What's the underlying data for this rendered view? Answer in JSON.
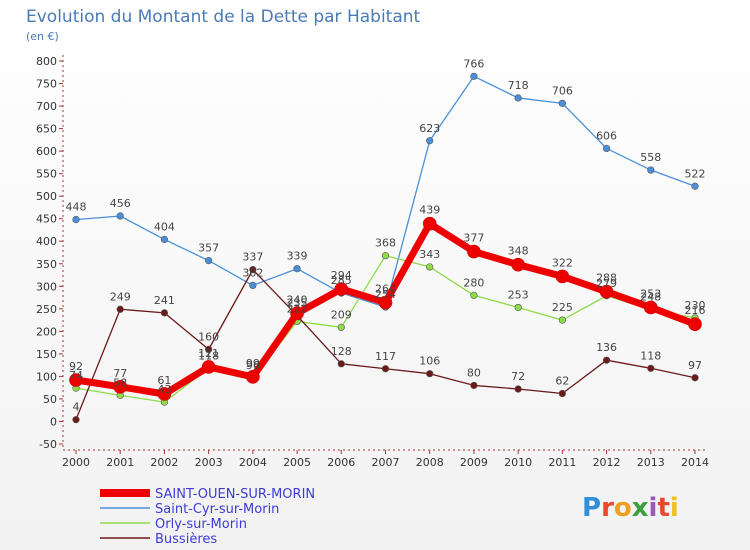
{
  "chart_data": {
    "type": "line",
    "title": "Evolution du Montant de la Dette par Habitant",
    "subtitle": "(en €)",
    "x": [
      "2000",
      "2001",
      "2002",
      "2003",
      "2004",
      "2005",
      "2006",
      "2007",
      "2008",
      "2009",
      "2010",
      "2011",
      "2012",
      "2013",
      "2014"
    ],
    "ylim": [
      -50,
      800
    ],
    "yticks": [
      -50,
      0,
      50,
      100,
      150,
      200,
      250,
      300,
      350,
      400,
      450,
      500,
      550,
      600,
      650,
      700,
      750,
      800
    ],
    "grid": false,
    "legend": "bottom-left",
    "series": [
      {
        "name": "Saint-Cyr-sur-Morin",
        "color": "#4a90d9",
        "values": [
          448,
          456,
          404,
          357,
          302,
          339,
          285,
          254,
          623,
          766,
          718,
          706,
          606,
          558,
          522
        ]
      },
      {
        "name": "Orly-sur-Morin",
        "color": "#8fdc4a",
        "values": [
          74,
          58,
          43,
          118,
          96,
          222,
          209,
          368,
          343,
          280,
          253,
          225,
          279,
          248,
          230
        ]
      },
      {
        "name": "Bussières",
        "color": "#6b1a1a",
        "values": [
          4,
          249,
          241,
          160,
          337,
          235,
          128,
          117,
          106,
          80,
          72,
          62,
          136,
          118,
          97
        ]
      },
      {
        "name": "SAINT-OUEN-SUR-MORIN",
        "color": "#ee0000",
        "values": [
          92,
          77,
          61,
          121,
          99,
          240,
          294,
          264,
          439,
          377,
          348,
          322,
          288,
          253,
          216
        ]
      }
    ],
    "legend_order": [
      "SAINT-OUEN-SUR-MORIN",
      "Saint-Cyr-sur-Morin",
      "Orly-sur-Morin",
      "Bussières"
    ]
  },
  "brand": {
    "letters": [
      "P",
      "r",
      "o",
      "x",
      "i",
      "t",
      "i"
    ],
    "colors": [
      "#2f8fd8",
      "#e64b2e",
      "#f0a020",
      "#3aa03a",
      "#9b59b6",
      "#e64b2e",
      "#f0c020"
    ]
  }
}
